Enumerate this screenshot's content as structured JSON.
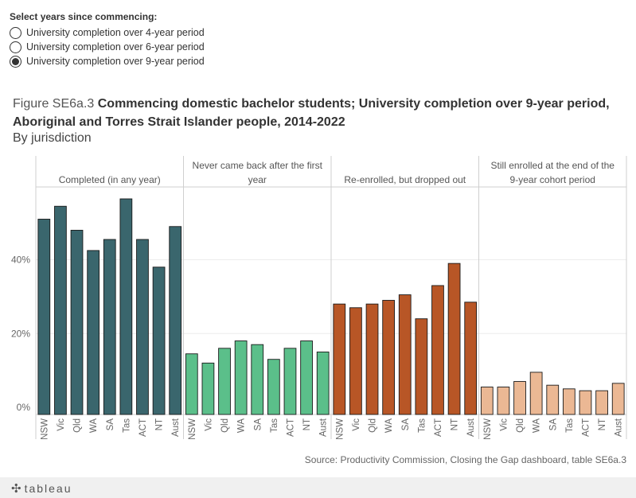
{
  "filter": {
    "title": "Select years since commencing:",
    "options": [
      {
        "label": "University completion over 4-year period",
        "selected": false
      },
      {
        "label": "University completion over 6-year period",
        "selected": false
      },
      {
        "label": "University completion over 9-year period",
        "selected": true
      }
    ]
  },
  "figure": {
    "prefix": "Figure SE6a.3",
    "title_line1": "Commencing domestic bachelor students; University completion over 9-year period,",
    "title_line2": "Aboriginal and Torres Strait Islander people, 2014-2022",
    "subtitle": "By jurisdiction"
  },
  "chart_data": {
    "type": "bar",
    "categories": [
      "NSW",
      "Vic",
      "Qld",
      "WA",
      "SA",
      "Tas",
      "ACT",
      "NT",
      "Aust"
    ],
    "ylim": [
      0,
      60
    ],
    "yticks": [
      0,
      20,
      40
    ],
    "ytick_labels": [
      "0%",
      "20%",
      "40%"
    ],
    "series": [
      {
        "name": "Completed (in any year)",
        "header_lines": [
          "Completed (in any year)"
        ],
        "color": "#3a666d",
        "values": [
          51,
          54.5,
          48,
          42.5,
          45.5,
          56.5,
          45.5,
          38,
          49
        ]
      },
      {
        "name": "Never came back after the first year",
        "header_lines": [
          "Never came back after the first",
          "year"
        ],
        "color": "#5bbf8a",
        "values": [
          14.5,
          12,
          16,
          18,
          17,
          13,
          16,
          18,
          15
        ]
      },
      {
        "name": "Re-enrolled, but dropped out",
        "header_lines": [
          "Re-enrolled, but dropped out"
        ],
        "color": "#b85626",
        "values": [
          28,
          27,
          28,
          29,
          30.5,
          24,
          33,
          39,
          28.5
        ]
      },
      {
        "name": "Still enrolled at the end of the 9-year cohort period",
        "header_lines": [
          "Still enrolled at the end of the",
          "9-year cohort period"
        ],
        "color": "#ebb894",
        "values": [
          5.5,
          5.5,
          7,
          9.5,
          6,
          5,
          4.5,
          4.5,
          6.5
        ]
      }
    ]
  },
  "source": "Source: Productivity Commission, Closing the Gap dashboard, table SE6a.3",
  "footer": {
    "logo": "tableau"
  }
}
